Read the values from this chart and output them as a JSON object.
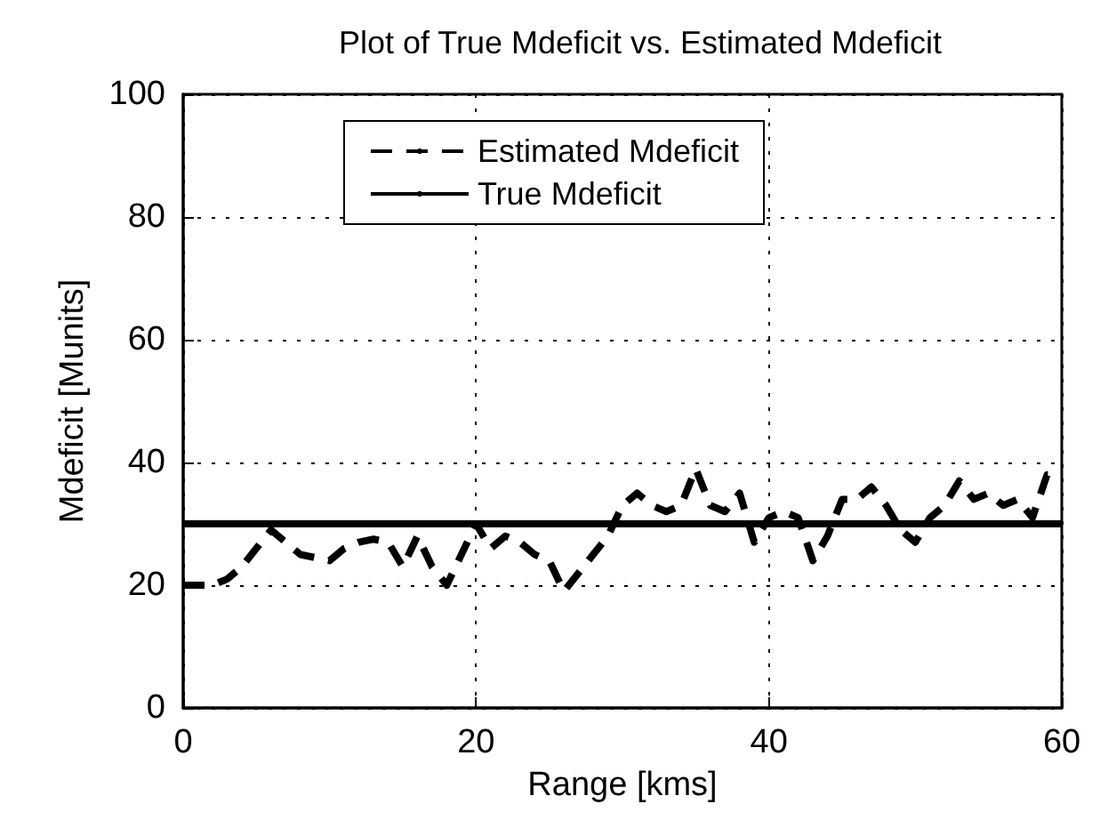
{
  "chart_data": {
    "type": "line",
    "title": "Plot of True Mdeficit vs. Estimated Mdeficit",
    "xlabel": "Range [kms]",
    "ylabel": "Mdeficit [Munits]",
    "xlim": [
      0,
      60
    ],
    "xticks": [
      0,
      20,
      40,
      60
    ],
    "ylim": [
      0,
      100
    ],
    "yticks": [
      0,
      20,
      40,
      60,
      80,
      100
    ],
    "grid": true,
    "legend": "top",
    "marker": "none",
    "x": [
      0,
      1,
      2,
      3,
      4,
      5,
      6,
      7,
      8,
      9,
      10,
      11,
      12,
      13,
      14,
      15,
      16,
      17,
      18,
      19,
      20,
      21,
      22,
      23,
      24,
      25,
      26,
      27,
      28,
      29,
      30,
      31,
      32,
      33,
      34,
      35,
      36,
      37,
      38,
      39,
      40,
      41,
      42,
      43,
      44,
      45,
      46,
      47,
      48,
      49,
      50,
      51,
      52,
      53,
      54,
      55,
      56,
      57,
      58,
      59,
      60
    ],
    "series": [
      {
        "name": "Estimated Mdeficit",
        "color": "#000000",
        "line_style": "dashed",
        "values": [
          20,
          20,
          20,
          21,
          23,
          26,
          29,
          27,
          25,
          24.5,
          24,
          26,
          27,
          27.5,
          27,
          23,
          28,
          23,
          20,
          25,
          30,
          26,
          28,
          27,
          25,
          24,
          19,
          22,
          25,
          28,
          33,
          35,
          33,
          32,
          33,
          39,
          33,
          32,
          35,
          27,
          31,
          32,
          31,
          24,
          28,
          34,
          34,
          36,
          33,
          29,
          27,
          31,
          33,
          37,
          34,
          35,
          33,
          34,
          31,
          38,
          38
        ]
      },
      {
        "name": "True Mdeficit",
        "color": "#000000",
        "line_style": "solid",
        "x": [
          0,
          60
        ],
        "values": [
          30,
          30
        ]
      }
    ]
  }
}
